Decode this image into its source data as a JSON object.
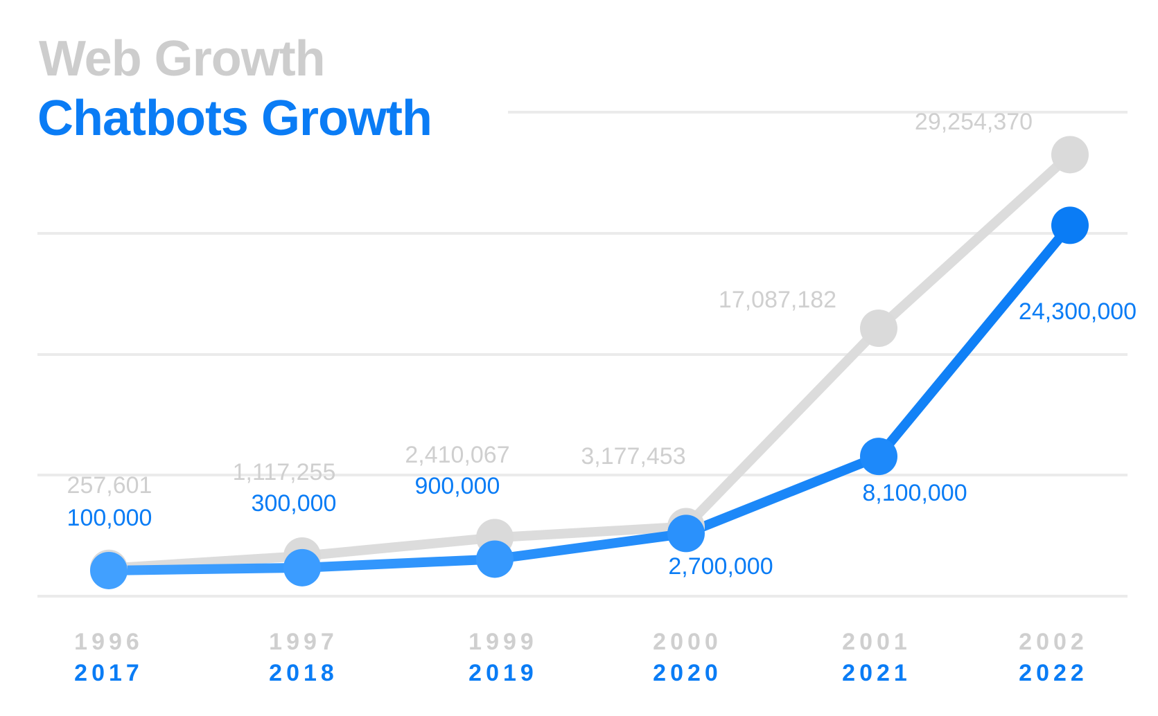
{
  "chart_data": {
    "type": "line",
    "series": [
      {
        "name": "Web Growth",
        "x_labels": [
          "1996",
          "1997",
          "1999",
          "2000",
          "2001",
          "2002"
        ],
        "values": [
          257601,
          1117255,
          2410067,
          3177453,
          17087182,
          29254370
        ],
        "value_labels": [
          "257,601",
          "1,117,255",
          "2,410,067",
          "3,177,453",
          "17,087,182",
          "29,254,370"
        ],
        "color": "#d6d6d6"
      },
      {
        "name": "Chatbots Growth",
        "x_labels": [
          "2017",
          "2018",
          "2019",
          "2020",
          "2021",
          "2022"
        ],
        "values": [
          100000,
          300000,
          900000,
          2700000,
          8100000,
          24300000
        ],
        "value_labels": [
          "100,000",
          "300,000",
          "900,000",
          "2,700,000",
          "8,100,000",
          "24,300,000"
        ],
        "color": "#0a7cf5"
      }
    ],
    "grid": true,
    "legend": "top-left"
  }
}
